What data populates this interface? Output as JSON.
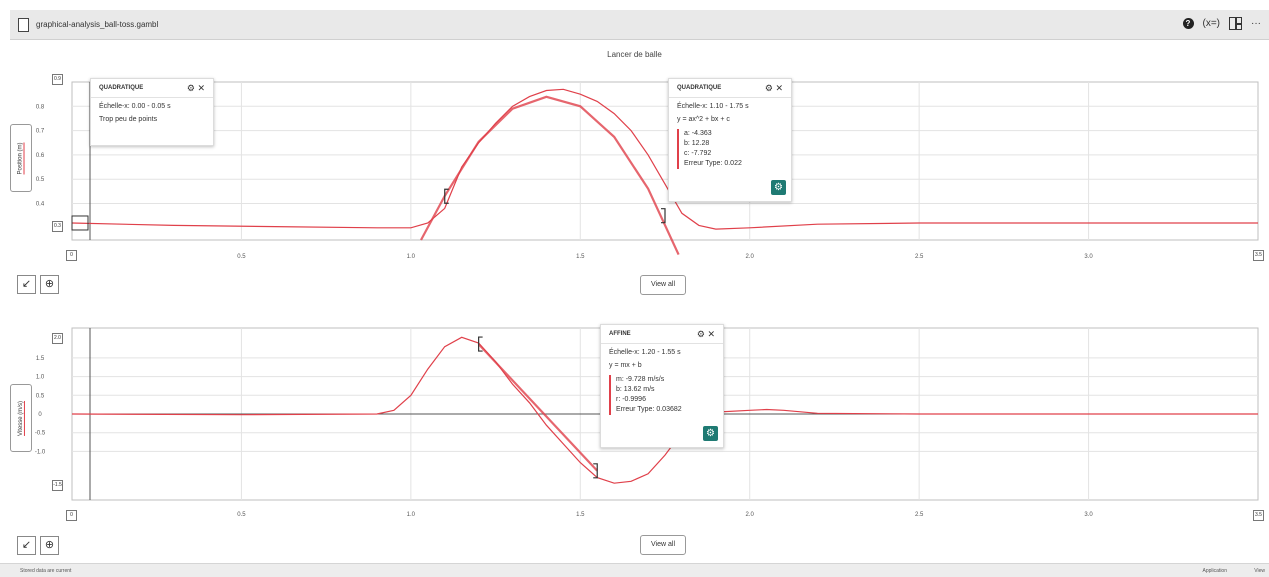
{
  "window": {
    "file_name": "graphical-analysis_ball-toss.gambl",
    "icons": [
      "file-icon",
      "help-icon",
      "variables-icon",
      "layout-icon",
      "more-icon"
    ]
  },
  "doc_title": "Lancer de balle",
  "graphs": [
    {
      "y_label": "Position (m)",
      "range_top": "0.9",
      "range_bottom": "0.3",
      "x_range_left": "0",
      "x_range_right": "3.5",
      "view_label": "View all",
      "chart_data": {
        "type": "line",
        "xlim": [
          0,
          3.5
        ],
        "ylim": [
          0.25,
          0.9
        ],
        "x_ticks": [
          "0.5",
          "1.0",
          "1.5",
          "2.0",
          "2.5",
          "3.0"
        ],
        "y_ticks": [
          "0.8",
          "0.7",
          "0.6",
          "0.5",
          "0.4"
        ],
        "x_tick_values": [
          0.5,
          1.0,
          1.5,
          2.0,
          2.5,
          3.0
        ],
        "y_tick_values": [
          0.8,
          0.7,
          0.6,
          0.5,
          0.4
        ],
        "series": [
          {
            "x": [
              0.0,
              0.3,
              0.6,
              0.9,
              1.0,
              1.05,
              1.1,
              1.15,
              1.2,
              1.25,
              1.3,
              1.35,
              1.4,
              1.45,
              1.5,
              1.55,
              1.6,
              1.65,
              1.7,
              1.75,
              1.8,
              1.85,
              1.9,
              2.0,
              2.2,
              2.5,
              3.0,
              3.5
            ],
            "y": [
              0.32,
              0.31,
              0.305,
              0.3,
              0.3,
              0.32,
              0.38,
              0.55,
              0.65,
              0.73,
              0.8,
              0.84,
              0.865,
              0.87,
              0.85,
              0.82,
              0.77,
              0.7,
              0.6,
              0.48,
              0.36,
              0.31,
              0.295,
              0.3,
              0.315,
              0.32,
              0.32,
              0.32
            ],
            "color": "#e0404a"
          }
        ],
        "fits": [
          {
            "x": [
              1.03,
              1.1,
              1.2,
              1.3,
              1.4,
              1.5,
              1.6,
              1.7,
              1.79
            ],
            "y": [
              0.25,
              0.431,
              0.654,
              0.79,
              0.839,
              0.8,
              0.674,
              0.461,
              0.19
            ],
            "color": "#e0404a"
          }
        ],
        "brackets": [
          {
            "x": 1.1,
            "y": 0.43,
            "side": "left"
          },
          {
            "x": 1.75,
            "y": 0.35,
            "side": "right"
          }
        ]
      },
      "fit_boxes": [
        {
          "title": "QUADRATIQUE",
          "lines": [
            "Échelle-x: 0.00 - 0.05 s",
            "Trop peu de points"
          ],
          "params": []
        },
        {
          "title": "QUADRATIQUE",
          "lines": [
            "Échelle-x: 1.10 - 1.75 s",
            "y = ax^2 + bx + c"
          ],
          "params": [
            "a: -4.363",
            "b: 12.28",
            "c: -7.792",
            "Erreur Type: 0.022"
          ]
        }
      ]
    },
    {
      "y_label": "Vitesse (m/s)",
      "range_top": "2.0",
      "range_bottom": "-1.5",
      "x_range_left": "0",
      "x_range_right": "3.5",
      "view_label": "View all",
      "chart_data": {
        "type": "line",
        "xlim": [
          0,
          3.5
        ],
        "ylim": [
          -2.3,
          2.3
        ],
        "x_ticks": [
          "0.5",
          "1.0",
          "1.5",
          "2.0",
          "2.5",
          "3.0"
        ],
        "y_ticks": [
          "1.5",
          "1.0",
          "0.5",
          "0",
          "-0.5",
          "-1.0"
        ],
        "x_tick_values": [
          0.5,
          1.0,
          1.5,
          2.0,
          2.5,
          3.0
        ],
        "y_tick_values": [
          1.5,
          1.0,
          0.5,
          0,
          -0.5,
          -1.0
        ],
        "series": [
          {
            "x": [
              0.0,
              0.5,
              0.9,
              0.95,
              1.0,
              1.05,
              1.1,
              1.15,
              1.2,
              1.25,
              1.3,
              1.35,
              1.4,
              1.45,
              1.5,
              1.55,
              1.6,
              1.65,
              1.7,
              1.75,
              1.8,
              1.85,
              1.9,
              2.0,
              2.05,
              2.1,
              2.2,
              2.5,
              3.0,
              3.5
            ],
            "y": [
              0.0,
              -0.02,
              0.0,
              0.1,
              0.5,
              1.2,
              1.8,
              2.05,
              1.9,
              1.4,
              0.8,
              0.3,
              -0.3,
              -0.8,
              -1.3,
              -1.7,
              -1.85,
              -1.8,
              -1.6,
              -1.1,
              -0.5,
              -0.1,
              0.05,
              0.1,
              0.12,
              0.1,
              0.02,
              0.0,
              0.0,
              0.0
            ],
            "color": "#e0404a"
          }
        ],
        "fits": [
          {
            "x": [
              1.2,
              1.55
            ],
            "y": [
              1.87,
              -1.52
            ],
            "color": "#e0404a"
          }
        ],
        "brackets": [
          {
            "x": 1.2,
            "y": 1.87,
            "side": "left"
          },
          {
            "x": 1.55,
            "y": -1.52,
            "side": "right"
          }
        ]
      },
      "fit_boxes": [
        {
          "title": "AFFINE",
          "lines": [
            "Échelle-x: 1.20 - 1.55 s",
            "y = mx + b"
          ],
          "params": [
            "m: -9.728 m/s/s",
            "b: 13.62 m/s",
            "r: -0.9996",
            "Erreur Type: 0.03682"
          ]
        }
      ]
    }
  ],
  "status": {
    "left": "Stored data are current",
    "right": "Application",
    "right2": "View"
  },
  "colors": {
    "data": "#e0404a",
    "accent": "#1f7a73"
  }
}
